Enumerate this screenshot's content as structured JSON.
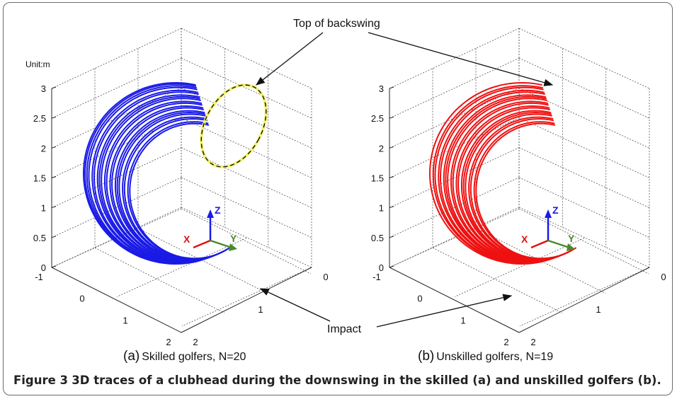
{
  "unit_label": "Unit:m",
  "annotations": {
    "top_of_backswing": "Top of backswing",
    "impact": "Impact"
  },
  "axis_letters": {
    "x": "X",
    "y": "Y",
    "z": "Z"
  },
  "ticks": {
    "z": [
      "0",
      "0.5",
      "1",
      "1.5",
      "2",
      "2.5",
      "3"
    ],
    "left_axis": [
      "-1",
      "0",
      "1",
      "2"
    ],
    "right_axis": [
      "0",
      "1",
      "2"
    ]
  },
  "panels": [
    {
      "label_prefix": "(a)",
      "label_text": "Skilled golfers, N=20",
      "color": "#1a1ae6",
      "n": 20
    },
    {
      "label_prefix": "(b)",
      "label_text": "Unskilled golfers, N=19",
      "color": "#ee1111",
      "n": 19
    }
  ],
  "colors": {
    "highlight": "#f4f36a",
    "x_arrow": "#e01010",
    "y_arrow": "#4a8a2a",
    "z_arrow": "#1a1ae6"
  },
  "caption": {
    "figure_label": "Figure 3",
    "text": "3D traces of a clubhead during the downswing in the skilled (a) and  unskilled golfers (b)."
  },
  "chart_data": {
    "type": "line",
    "subplots": [
      {
        "name": "Skilled golfers, N=20",
        "zlim": [
          0,
          3
        ],
        "xlim": [
          -1,
          2
        ],
        "ylim": [
          0,
          2
        ],
        "grid": true
      },
      {
        "name": "Unskilled golfers, N=19",
        "zlim": [
          0,
          3
        ],
        "xlim": [
          -1,
          2
        ],
        "ylim": [
          0,
          2
        ],
        "grid": true
      }
    ]
  }
}
